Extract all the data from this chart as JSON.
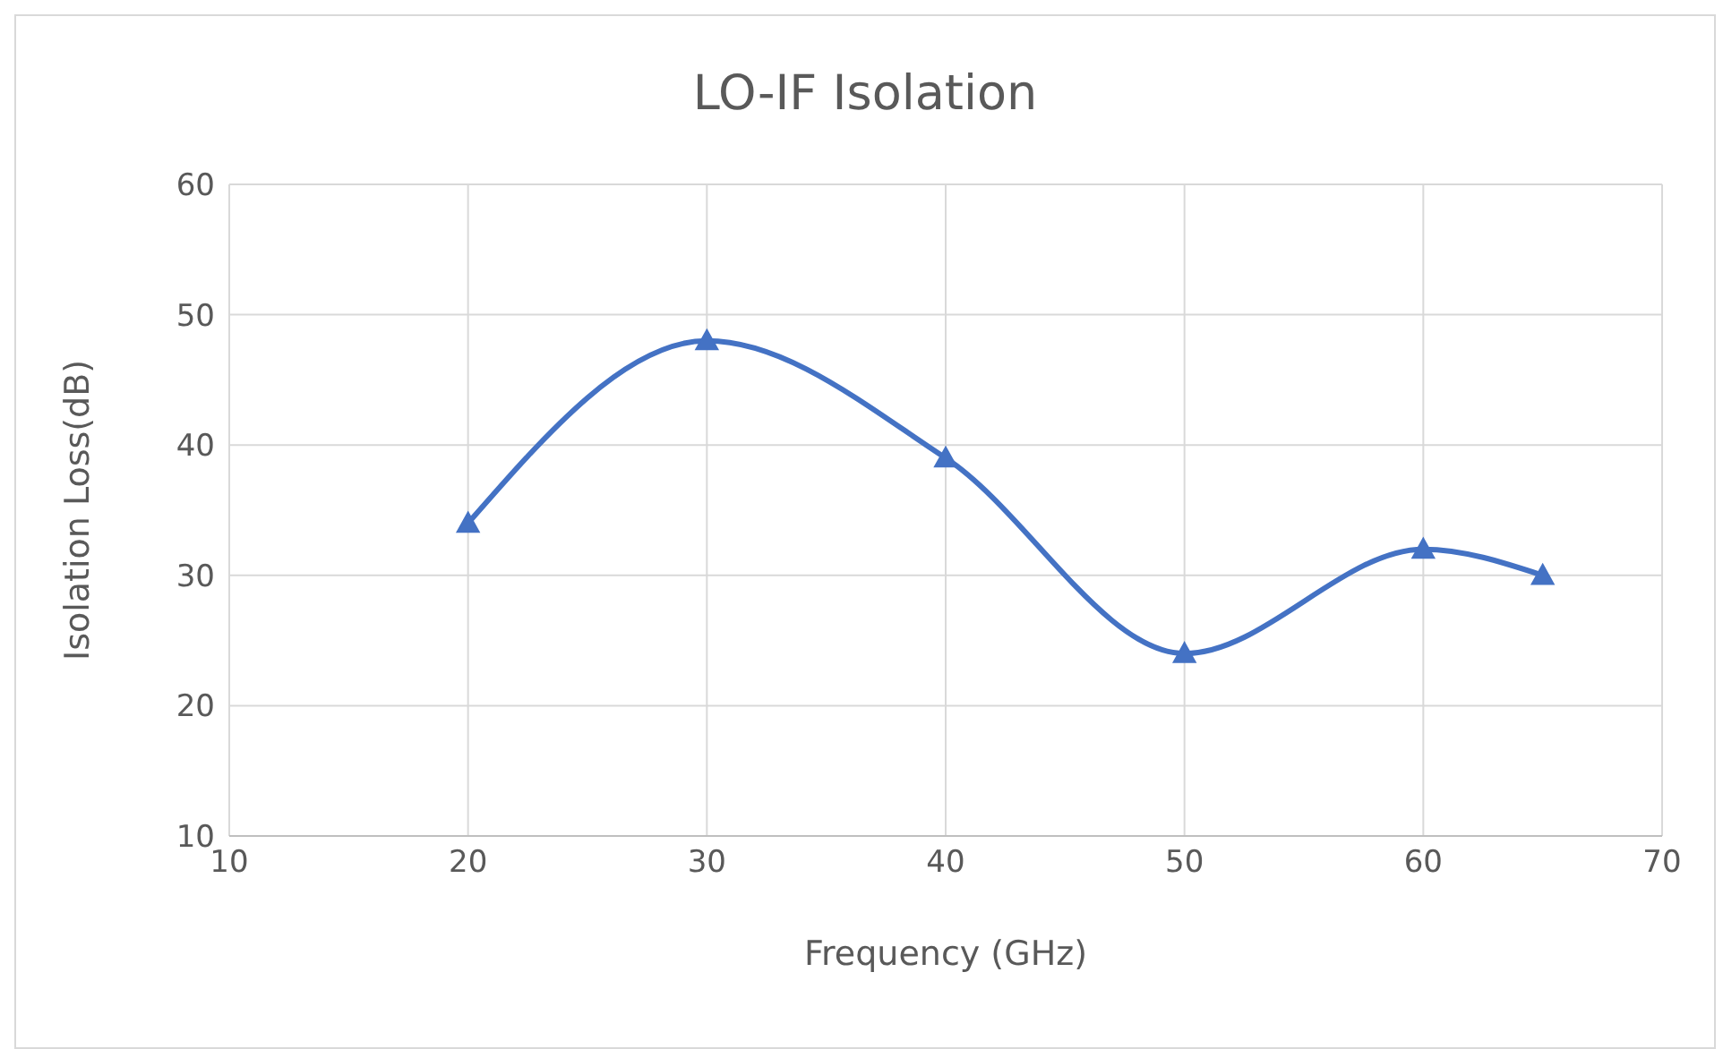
{
  "chart_data": {
    "type": "line",
    "title": "LO-IF Isolation",
    "xlabel": "Frequency (GHz)",
    "ylabel": "Isolation Loss(dB)",
    "x": [
      20,
      30,
      40,
      50,
      60,
      65
    ],
    "series": [
      {
        "color": "#4472c4",
        "values": [
          34,
          48,
          39,
          24,
          32,
          30
        ]
      }
    ],
    "xlim": [
      10,
      70
    ],
    "xticks": [
      10,
      20,
      30,
      40,
      50,
      60,
      70
    ],
    "ylim": [
      10,
      60
    ],
    "yticks": [
      10,
      20,
      30,
      40,
      50,
      60
    ],
    "grid": true,
    "marker": "triangle",
    "line_style": "solid"
  }
}
